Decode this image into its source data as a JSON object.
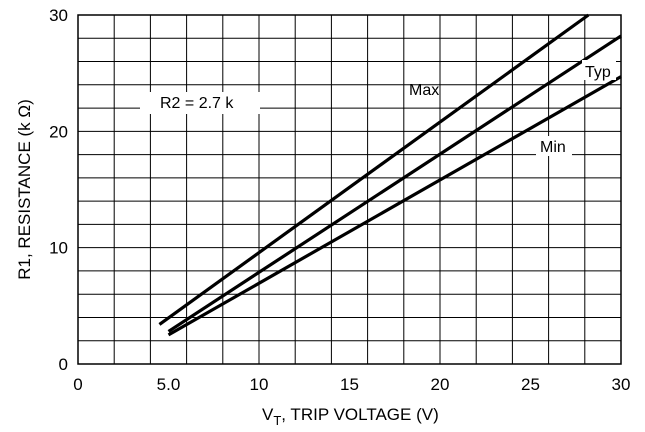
{
  "chart_data": {
    "type": "line",
    "xlabel_main": "V",
    "xlabel_sub": "T",
    "xlabel_rest": ", TRIP VOLTAGE (V)",
    "ylabel": "R1, RESISTANCE (k Ω)",
    "xlim": [
      0,
      30
    ],
    "ylim": [
      0,
      30
    ],
    "x_ticks": [
      0,
      5,
      10,
      15,
      20,
      25,
      30
    ],
    "x_tick_labels": [
      "0",
      "5.0",
      "10",
      "15",
      "20",
      "25",
      "30"
    ],
    "y_ticks": [
      0,
      10,
      20,
      30
    ],
    "y_tick_labels": [
      "0",
      "10",
      "20",
      "30"
    ],
    "grid": true,
    "annotation": "R2 = 2.7 k",
    "series": [
      {
        "name": "Max",
        "x": [
          4.5,
          28.2
        ],
        "y": [
          3.4,
          30.0
        ]
      },
      {
        "name": "Typ",
        "x": [
          5.0,
          30.0
        ],
        "y": [
          2.8,
          28.2
        ]
      },
      {
        "name": "Min",
        "x": [
          5.0,
          30.0
        ],
        "y": [
          2.5,
          24.7
        ]
      }
    ]
  }
}
